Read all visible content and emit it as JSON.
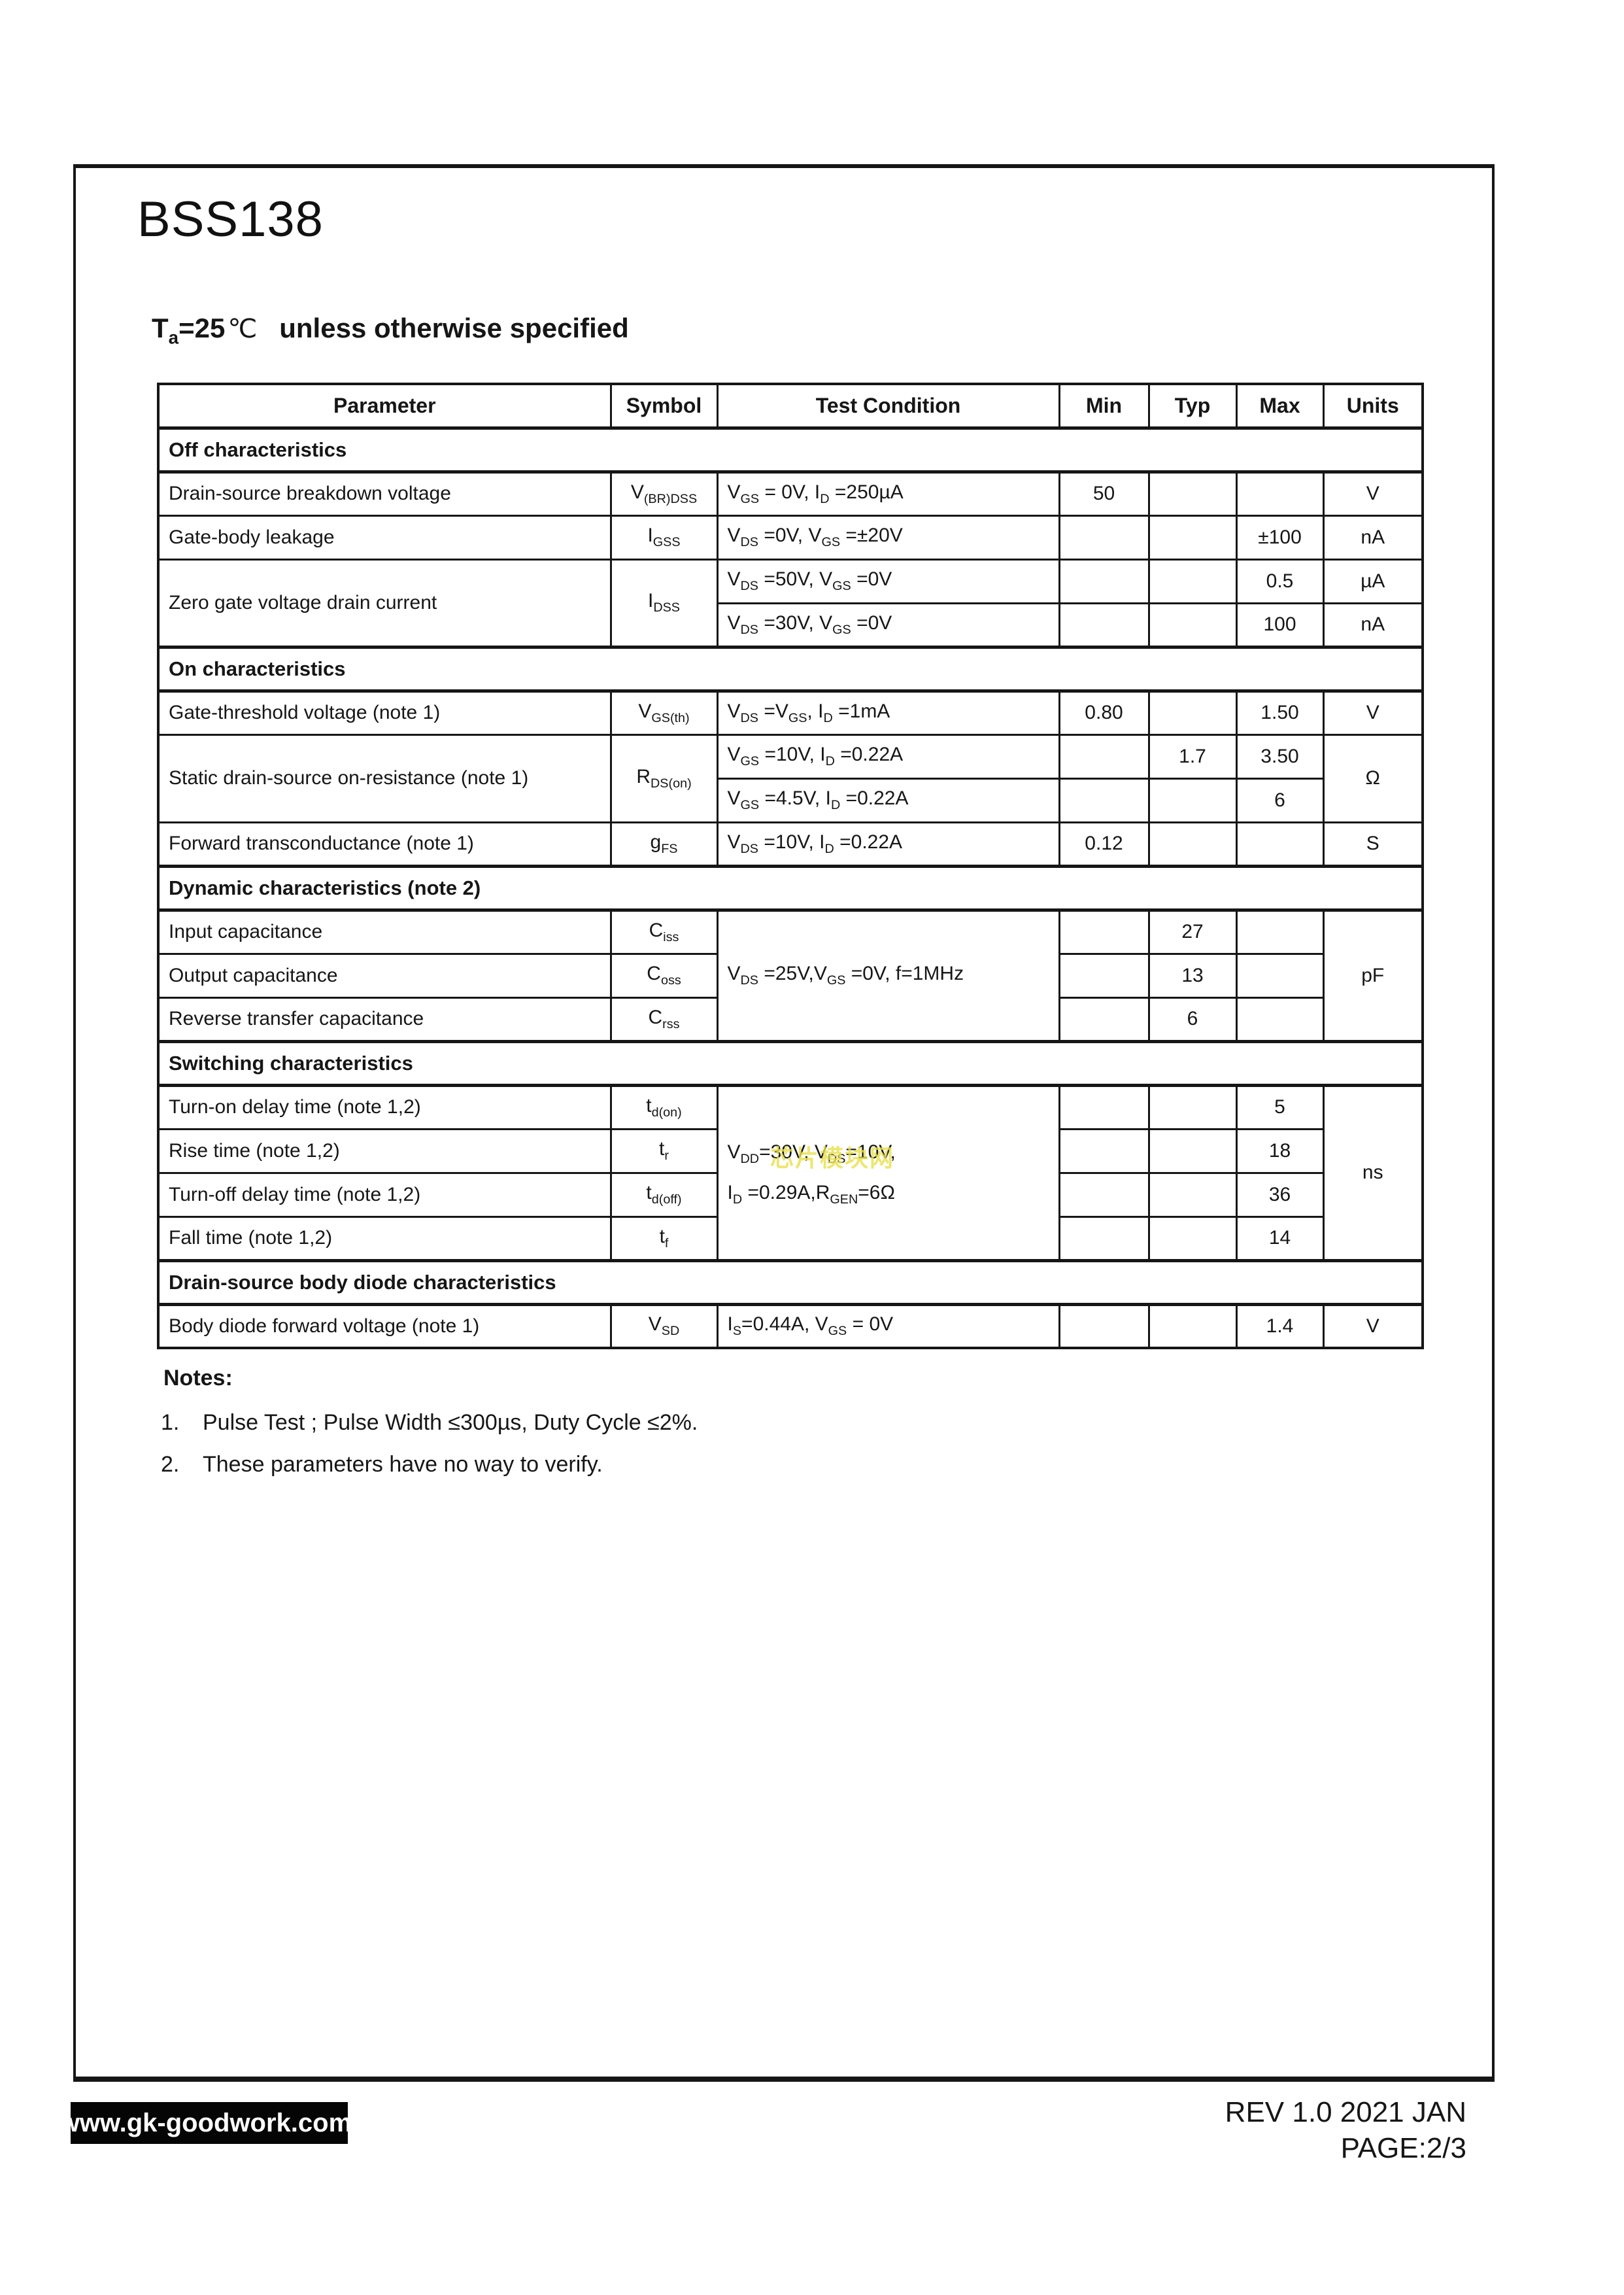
{
  "page": {
    "title": "BSS138",
    "subtitle": {
      "temp": "T_{a}=25",
      "degree": "℃",
      "rest": "unless otherwise specified"
    },
    "watermark": {
      "text": "芯片模块网",
      "color": "#e8e04c"
    }
  },
  "table": {
    "headers": [
      "Parameter",
      "Symbol",
      "Test Condition",
      "Min",
      "Typ",
      "Max",
      "Units"
    ],
    "rows": [
      {
        "type": "section",
        "title": "Off characteristics"
      },
      {
        "type": "data",
        "cells": [
          {
            "t": "Drain-source breakdown voltage",
            "a": "l"
          },
          {
            "t": "V_{(BR)DSS}",
            "a": "c"
          },
          {
            "t": "V_{GS} = 0V, I_{D} =250µA",
            "a": "l"
          },
          {
            "t": "50",
            "a": "c"
          },
          {
            "t": "",
            "a": "c"
          },
          {
            "t": "",
            "a": "c"
          },
          {
            "t": "V",
            "a": "c"
          }
        ]
      },
      {
        "type": "data",
        "cells": [
          {
            "t": "Gate-body leakage",
            "a": "l"
          },
          {
            "t": "I_{GSS}",
            "a": "c"
          },
          {
            "t": "V_{DS} =0V, V_{GS} =±20V",
            "a": "l"
          },
          {
            "t": "",
            "a": "c"
          },
          {
            "t": "",
            "a": "c"
          },
          {
            "t": "±100",
            "a": "c"
          },
          {
            "t": "nA",
            "a": "c"
          }
        ]
      },
      {
        "type": "data",
        "cells": [
          {
            "t": "Zero gate voltage drain current",
            "a": "l",
            "rs": 2
          },
          {
            "t": "I_{DSS}",
            "a": "c",
            "rs": 2
          },
          {
            "t": "V_{DS} =50V, V_{GS} =0V",
            "a": "l"
          },
          {
            "t": "",
            "a": "c"
          },
          {
            "t": "",
            "a": "c"
          },
          {
            "t": "0.5",
            "a": "c"
          },
          {
            "t": "µA",
            "a": "c"
          }
        ]
      },
      {
        "type": "data",
        "cells": [
          {
            "t": "V_{DS} =30V, V_{GS} =0V",
            "a": "l"
          },
          {
            "t": "",
            "a": "c"
          },
          {
            "t": "",
            "a": "c"
          },
          {
            "t": "100",
            "a": "c"
          },
          {
            "t": "nA",
            "a": "c"
          }
        ]
      },
      {
        "type": "section",
        "title": "On characteristics"
      },
      {
        "type": "data",
        "cells": [
          {
            "t": "Gate-threshold voltage (note 1)",
            "a": "l"
          },
          {
            "t": "V_{GS(th)}",
            "a": "c"
          },
          {
            "t": "V_{DS} =V_{GS}, I_{D} =1mA",
            "a": "l"
          },
          {
            "t": "0.80",
            "a": "c"
          },
          {
            "t": "",
            "a": "c"
          },
          {
            "t": "1.50",
            "a": "c"
          },
          {
            "t": "V",
            "a": "c"
          }
        ]
      },
      {
        "type": "data",
        "cells": [
          {
            "t": "Static drain-source on-resistance (note 1)",
            "a": "l",
            "rs": 2
          },
          {
            "t": "R_{DS(on)}",
            "a": "c",
            "rs": 2
          },
          {
            "t": "V_{GS} =10V, I_{D} =0.22A",
            "a": "l"
          },
          {
            "t": "",
            "a": "c"
          },
          {
            "t": "1.7",
            "a": "c"
          },
          {
            "t": "3.50",
            "a": "c"
          },
          {
            "t": "Ω",
            "a": "c",
            "rs": 2
          }
        ]
      },
      {
        "type": "data",
        "cells": [
          {
            "t": "V_{GS} =4.5V, I_{D} =0.22A",
            "a": "l"
          },
          {
            "t": "",
            "a": "c"
          },
          {
            "t": "",
            "a": "c"
          },
          {
            "t": "6",
            "a": "c"
          }
        ]
      },
      {
        "type": "data",
        "cells": [
          {
            "t": "Forward transconductance (note 1)",
            "a": "l"
          },
          {
            "t": "g_{FS}",
            "a": "c"
          },
          {
            "t": "V_{DS} =10V, I_{D} =0.22A",
            "a": "l"
          },
          {
            "t": "0.12",
            "a": "c"
          },
          {
            "t": "",
            "a": "c"
          },
          {
            "t": "",
            "a": "c"
          },
          {
            "t": "S",
            "a": "c"
          }
        ]
      },
      {
        "type": "section",
        "title": "Dynamic characteristics (note 2)"
      },
      {
        "type": "data",
        "cells": [
          {
            "t": "Input capacitance",
            "a": "l"
          },
          {
            "t": "C_{iss}",
            "a": "c"
          },
          {
            "t": "V_{DS} =25V,V_{GS} =0V, f=1MHz",
            "a": "l",
            "rs": 3
          },
          {
            "t": "",
            "a": "c"
          },
          {
            "t": "27",
            "a": "c"
          },
          {
            "t": "",
            "a": "c"
          },
          {
            "t": "pF",
            "a": "c",
            "rs": 3
          }
        ]
      },
      {
        "type": "data",
        "cells": [
          {
            "t": "Output capacitance",
            "a": "l"
          },
          {
            "t": "C_{oss}",
            "a": "c"
          },
          {
            "t": "",
            "a": "c"
          },
          {
            "t": "13",
            "a": "c"
          },
          {
            "t": "",
            "a": "c"
          }
        ]
      },
      {
        "type": "data",
        "cells": [
          {
            "t": "Reverse transfer capacitance",
            "a": "l"
          },
          {
            "t": "C_{rss}",
            "a": "c"
          },
          {
            "t": "",
            "a": "c"
          },
          {
            "t": "6",
            "a": "c"
          },
          {
            "t": "",
            "a": "c"
          }
        ]
      },
      {
        "type": "section",
        "title": "Switching characteristics"
      },
      {
        "type": "data",
        "cells": [
          {
            "t": "Turn-on delay time (note 1,2)",
            "a": "l"
          },
          {
            "t": "t_{d(on)}",
            "a": "c"
          },
          {
            "t": "V_{DD}=30V, V_{DS}=10V,\nI_{D} =0.29A,R_{GEN}=6Ω",
            "a": "l",
            "rs": 4
          },
          {
            "t": "",
            "a": "c"
          },
          {
            "t": "",
            "a": "c"
          },
          {
            "t": "5",
            "a": "c"
          },
          {
            "t": "ns",
            "a": "c",
            "rs": 4
          }
        ]
      },
      {
        "type": "data",
        "cells": [
          {
            "t": "Rise time (note 1,2)",
            "a": "l"
          },
          {
            "t": "t_{r}",
            "a": "c"
          },
          {
            "t": "",
            "a": "c"
          },
          {
            "t": "",
            "a": "c"
          },
          {
            "t": "18",
            "a": "c"
          }
        ]
      },
      {
        "type": "data",
        "cells": [
          {
            "t": "Turn-off delay time (note 1,2)",
            "a": "l"
          },
          {
            "t": "t_{d(off)}",
            "a": "c"
          },
          {
            "t": "",
            "a": "c"
          },
          {
            "t": "",
            "a": "c"
          },
          {
            "t": "36",
            "a": "c"
          }
        ]
      },
      {
        "type": "data",
        "cells": [
          {
            "t": "Fall time (note 1,2)",
            "a": "l"
          },
          {
            "t": "t_{f}",
            "a": "c"
          },
          {
            "t": "",
            "a": "c"
          },
          {
            "t": "",
            "a": "c"
          },
          {
            "t": "14",
            "a": "c"
          }
        ]
      },
      {
        "type": "section",
        "title": "Drain-source body diode characteristics"
      },
      {
        "type": "data",
        "cells": [
          {
            "t": "Body diode forward voltage (note 1)",
            "a": "l"
          },
          {
            "t": "V_{SD}",
            "a": "c"
          },
          {
            "t": "I_{S}=0.44A, V_{GS} = 0V",
            "a": "l"
          },
          {
            "t": "",
            "a": "c"
          },
          {
            "t": "",
            "a": "c"
          },
          {
            "t": "1.4",
            "a": "c"
          },
          {
            "t": "V",
            "a": "c"
          }
        ]
      }
    ]
  },
  "notes": {
    "title": "Notes:",
    "items": [
      {
        "num": "1.",
        "text": "Pulse Test ; Pulse Width ≤300µs, Duty Cycle ≤2%."
      },
      {
        "num": "2.",
        "text": "These parameters have no way to verify."
      }
    ]
  },
  "footer": {
    "website": "www.gk-goodwork.com.",
    "rev": "REV 1.0 2021 JAN",
    "page": "PAGE:2/3"
  }
}
